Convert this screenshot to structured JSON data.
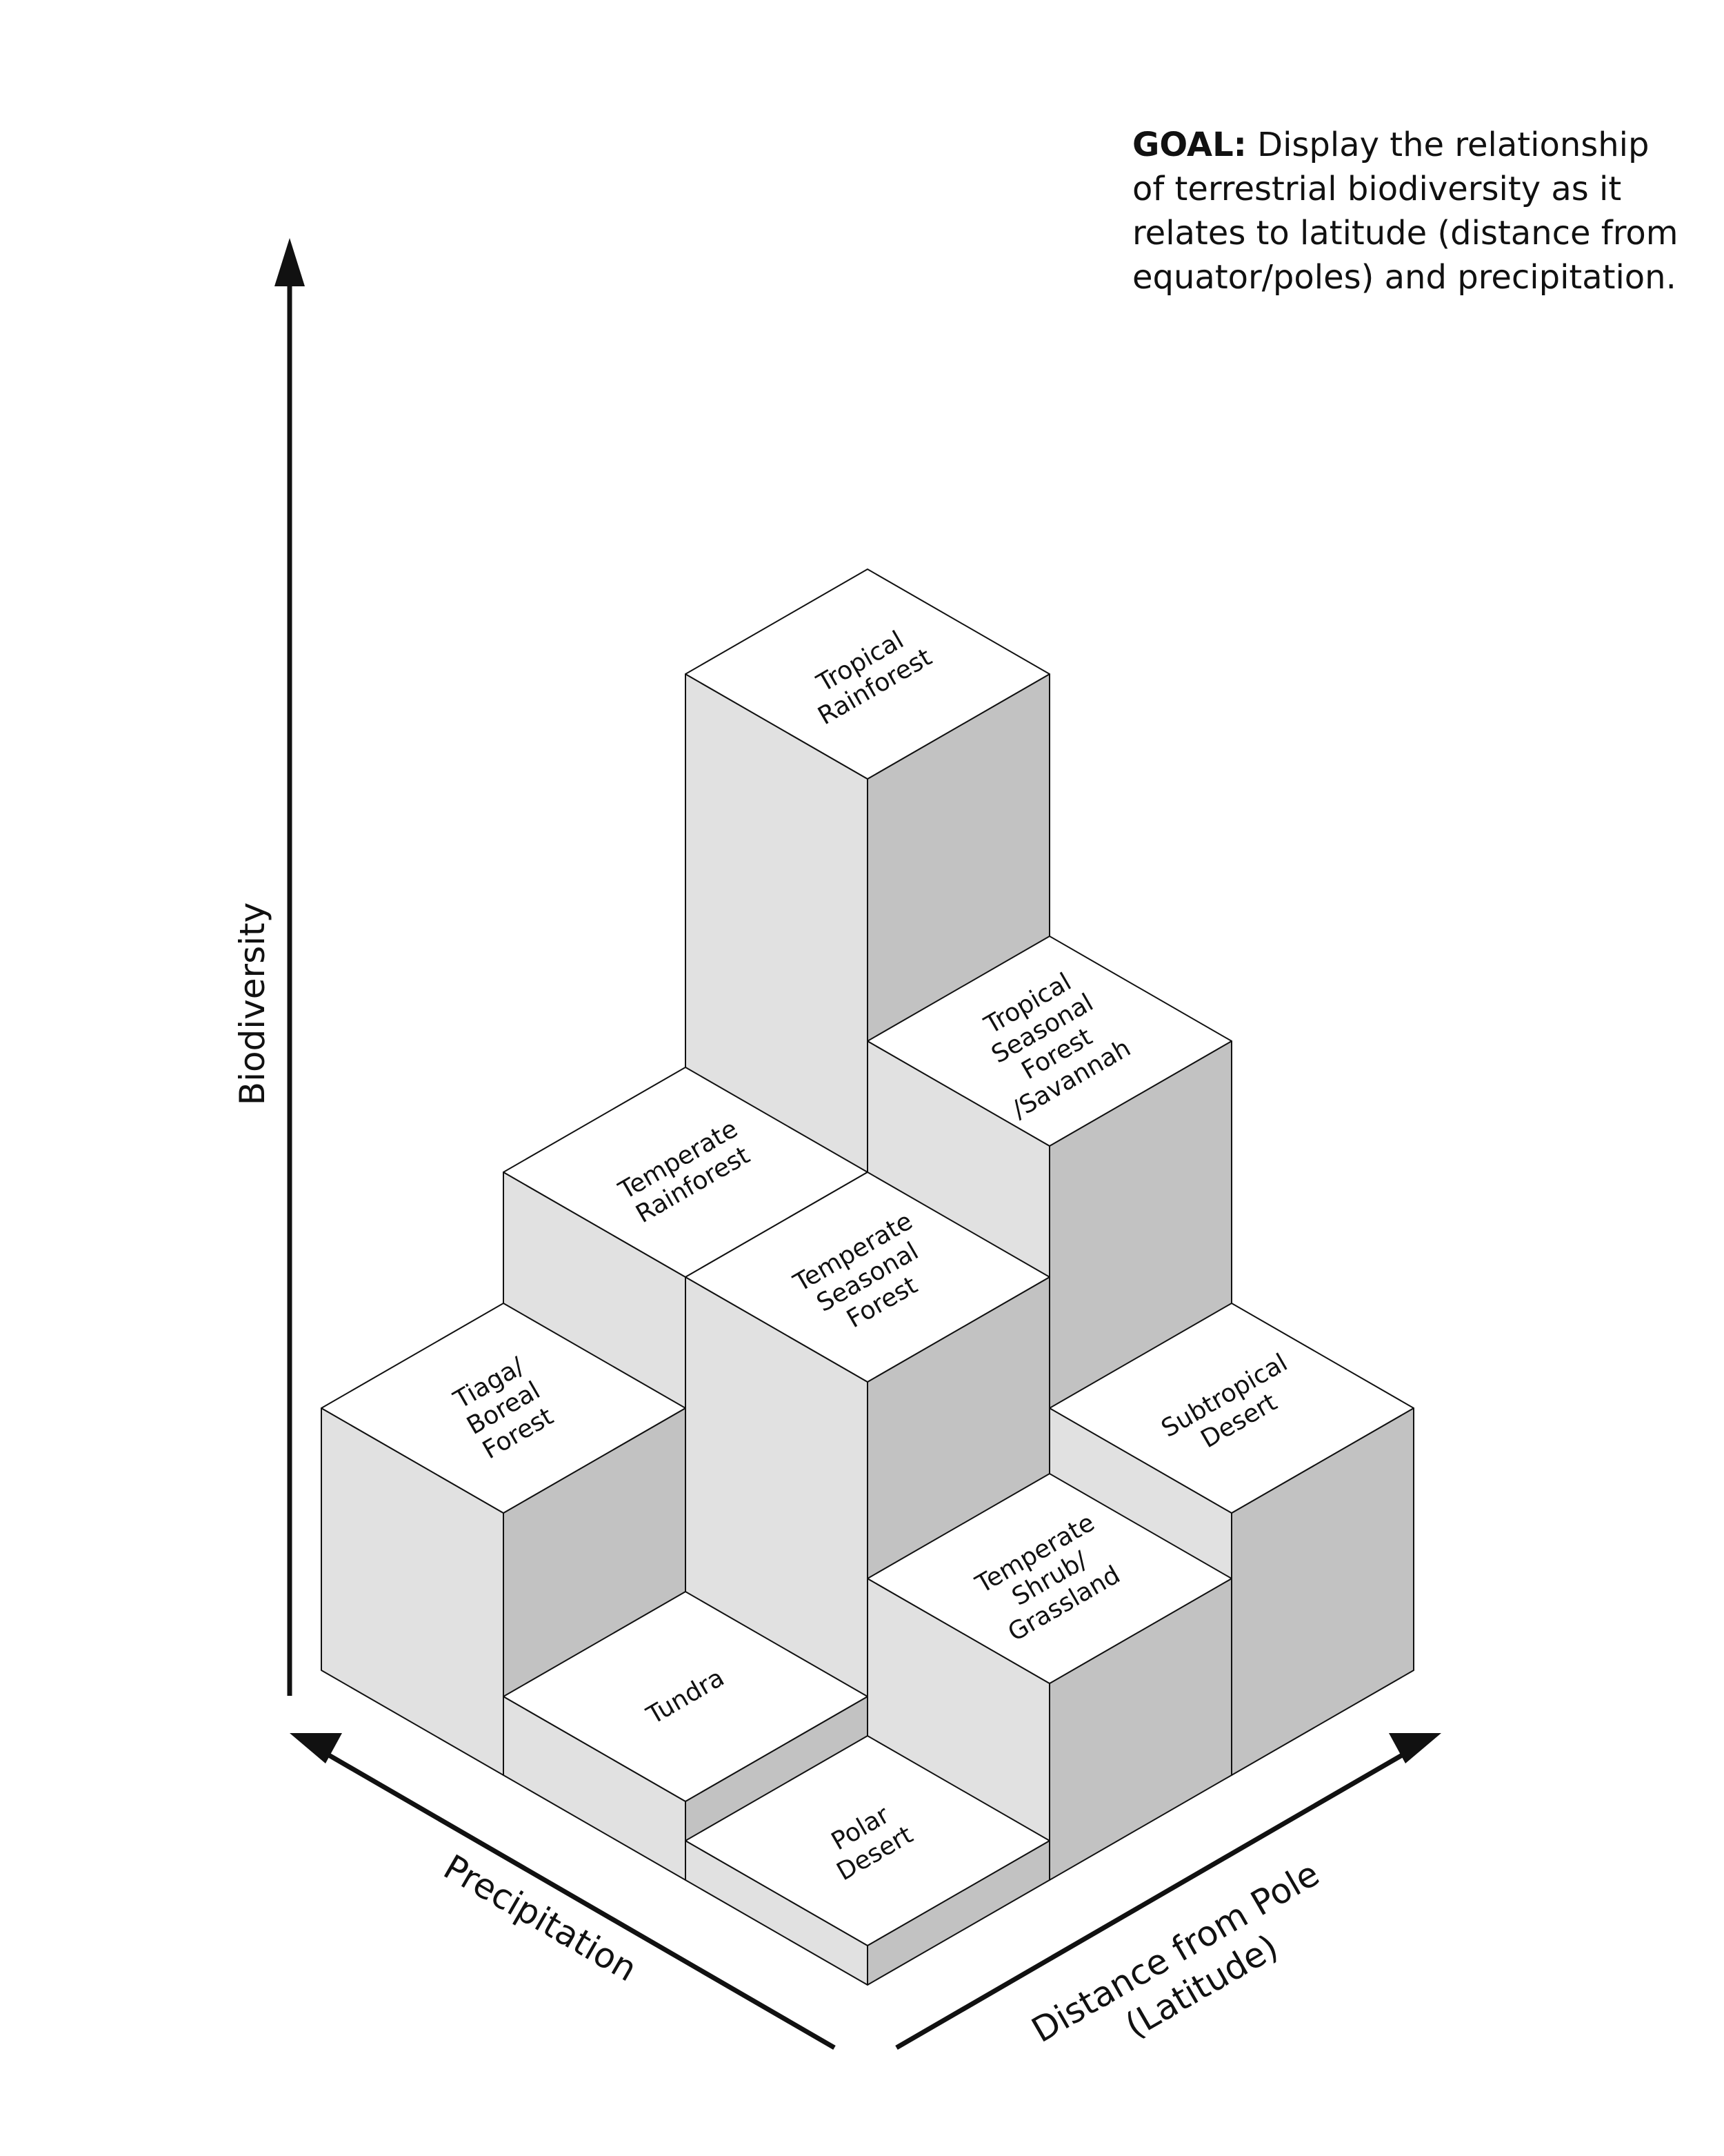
{
  "goal": {
    "heading": "GOAL:",
    "text": "Display the relationship of terrestrial biodiversity as it relates to latitude (distance from equator/poles) and precipitation."
  },
  "axes": {
    "vertical": "Biodiversity",
    "left": "Precipitation",
    "right_line1": "Distance from Pole",
    "right_line2": "(Latitude)"
  },
  "biomes": [
    {
      "id": "tropical-rainforest",
      "lines": [
        "Tropical",
        "Rainforest"
      ],
      "biodiversity_level": 6,
      "precipitation_rank": 3,
      "distance_rank": 3
    },
    {
      "id": "tropical-seasonal-forest",
      "lines": [
        "Tropical",
        "Seasonal",
        "Forest",
        "/Savannah"
      ],
      "biodiversity_level": 4,
      "precipitation_rank": 2,
      "distance_rank": 3
    },
    {
      "id": "temperate-rainforest",
      "lines": [
        "Temperate",
        "Rainforest"
      ],
      "biodiversity_level": 3,
      "precipitation_rank": 3,
      "distance_rank": 2
    },
    {
      "id": "temperate-seasonal-forest",
      "lines": [
        "Temperate",
        "Seasonal",
        "Forest"
      ],
      "biodiversity_level": 3,
      "precipitation_rank": 2,
      "distance_rank": 2
    },
    {
      "id": "subtropical-desert",
      "lines": [
        "Subtropical",
        "Desert"
      ],
      "biodiversity_level": 2,
      "precipitation_rank": 1,
      "distance_rank": 3
    },
    {
      "id": "tiaga-boreal-forest",
      "lines": [
        "Tiaga/",
        "Boreal",
        "Forest"
      ],
      "biodiversity_level": 2,
      "precipitation_rank": 3,
      "distance_rank": 1
    },
    {
      "id": "temperate-shrub-grassland",
      "lines": [
        "Temperate",
        "Shrub/",
        "Grassland"
      ],
      "biodiversity_level": 1.5,
      "precipitation_rank": 1,
      "distance_rank": 2
    },
    {
      "id": "tundra",
      "lines": [
        "Tundra"
      ],
      "biodiversity_level": 0.6,
      "precipitation_rank": 2,
      "distance_rank": 1
    },
    {
      "id": "polar-desert",
      "lines": [
        "Polar",
        "Desert"
      ],
      "biodiversity_level": 0.3,
      "precipitation_rank": 1,
      "distance_rank": 1
    }
  ]
}
